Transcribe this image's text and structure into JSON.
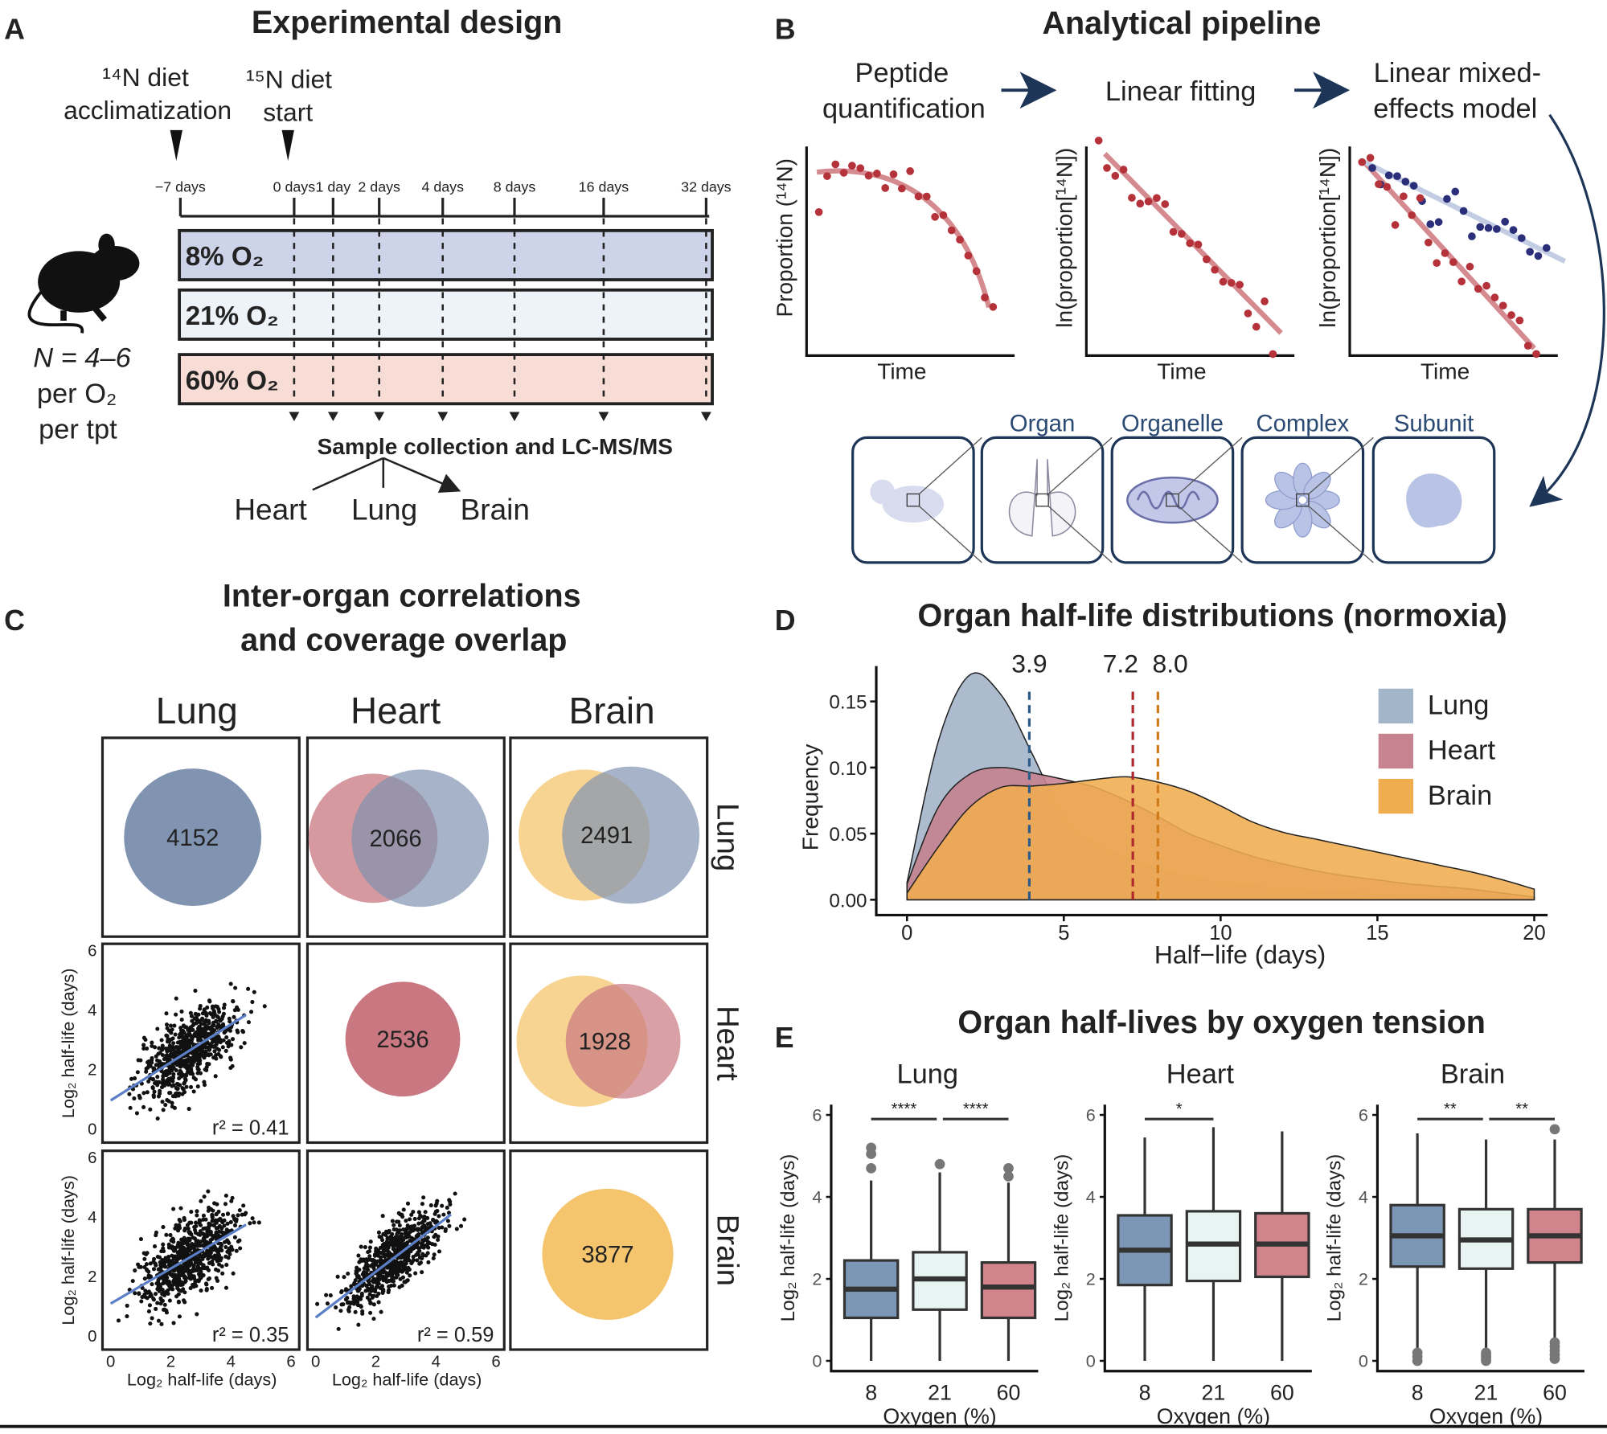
{
  "panel_a": {
    "letter": "A",
    "title": "Experimental design",
    "marker_14n": "¹⁴N diet",
    "marker_14n_sub": "acclimatization",
    "marker_15n": "¹⁵N diet",
    "marker_15n_sub": "start",
    "timepoints": [
      "−7 days",
      "0 days",
      "1 day",
      "2 days",
      "4 days",
      "8 days",
      "16 days",
      "32 days"
    ],
    "conditions": [
      {
        "label": "8% O₂",
        "color": "#cdd3e8"
      },
      {
        "label": "21% O₂",
        "color": "#eef2f9"
      },
      {
        "label": "60% O₂",
        "color": "#f8ddd7"
      }
    ],
    "n_line1": "N = 4–6",
    "n_line2": "per O₂",
    "n_line3": "per tpt",
    "collection": "Sample collection and LC-MS/MS",
    "organs": [
      "Heart",
      "Lung",
      "Brain"
    ],
    "icon": "mouse-silhouette-icon"
  },
  "panel_b": {
    "letter": "B",
    "title": "Analytical pipeline",
    "steps": [
      {
        "title1": "Peptide",
        "title2": "quantification",
        "ylabel": "Proportion (¹⁴N)",
        "xlabel": "Time"
      },
      {
        "title1": "Linear fitting",
        "title2": "",
        "ylabel": "ln(proportion[¹⁴N])",
        "xlabel": "Time"
      },
      {
        "title1": "Linear mixed-",
        "title2": "effects model",
        "ylabel": "ln(proportion[¹⁴N])",
        "xlabel": "Time"
      }
    ],
    "levels": [
      "Organ",
      "Organelle",
      "Complex",
      "Subunit"
    ],
    "colors": {
      "red": "#b5323a",
      "blue": "#2b2f7a",
      "fit_red": "#d48a8e",
      "fit_blue": "#c2cde3",
      "navy": "#1d3557"
    }
  },
  "panel_c": {
    "letter": "C",
    "title1": "Inter-organ correlations",
    "title2": "and coverage overlap",
    "columns": [
      "Lung",
      "Heart",
      "Brain"
    ],
    "rows": [
      "Lung",
      "Heart",
      "Brain"
    ],
    "colors": {
      "Lung": "#8093b0",
      "Heart": "#c97780",
      "Brain": "#f5c56e"
    },
    "venn": {
      "lung": 4152,
      "heart": 2536,
      "brain": 3877,
      "lung_heart": 2066,
      "lung_brain": 2491,
      "heart_brain": 1928
    },
    "scatter": [
      {
        "r2_label": "r² = 0.41",
        "ylabel": "Log₂ half-life (days)",
        "xlabel": ""
      },
      {
        "r2_label": "r² = 0.35",
        "ylabel": "Log₂ half-life (days)",
        "xlabel": "Log₂ half-life (days)"
      },
      {
        "r2_label": "r² = 0.59",
        "ylabel": "",
        "xlabel": "Log₂ half-life (days)"
      }
    ],
    "ticks": [
      "0",
      "2",
      "4",
      "6"
    ]
  },
  "chart_data": [
    {
      "type": "area",
      "panel": "D",
      "title": "Organ half-life distributions (normoxia)",
      "xlabel": "Half−life (days)",
      "ylabel": "Frequency",
      "xlim": [
        0,
        20
      ],
      "ylim": [
        0,
        0.17
      ],
      "xticks": [
        "0",
        "5",
        "10",
        "15",
        "20"
      ],
      "yticks": [
        "0.00",
        "0.05",
        "0.10",
        "0.15"
      ],
      "legend_position": "top-right",
      "x": [
        0,
        1,
        2,
        3,
        4,
        5,
        6,
        7,
        8,
        9,
        10,
        11,
        12,
        13,
        14,
        15,
        16,
        17,
        18,
        19,
        20
      ],
      "series": [
        {
          "name": "Lung",
          "color": "#a3b5c9",
          "median": 3.9,
          "median_color": "#2e5a87",
          "values": [
            0.013,
            0.12,
            0.17,
            0.155,
            0.11,
            0.062,
            0.042,
            0.031,
            0.023,
            0.017,
            0.013,
            0.01,
            0.008,
            0.006,
            0.005,
            0.004,
            0.003,
            0.002,
            0.002,
            0.001,
            0.0
          ]
        },
        {
          "name": "Heart",
          "color": "#c78390",
          "median": 7.2,
          "median_color": "#b0282e",
          "values": [
            0.012,
            0.07,
            0.095,
            0.1,
            0.096,
            0.091,
            0.085,
            0.075,
            0.063,
            0.05,
            0.041,
            0.033,
            0.027,
            0.022,
            0.018,
            0.015,
            0.012,
            0.01,
            0.008,
            0.005,
            0.002
          ]
        },
        {
          "name": "Brain",
          "color": "#f0ad50",
          "median": 8.0,
          "median_color": "#d07a1a",
          "values": [
            0.005,
            0.04,
            0.07,
            0.085,
            0.086,
            0.088,
            0.091,
            0.093,
            0.089,
            0.082,
            0.071,
            0.059,
            0.051,
            0.046,
            0.041,
            0.036,
            0.031,
            0.026,
            0.021,
            0.015,
            0.008
          ]
        }
      ],
      "annotations": [
        "3.9",
        "7.2",
        "8.0"
      ]
    },
    {
      "type": "box",
      "panel": "E",
      "title": "Organ half-lives by oxygen tension",
      "xlabel": "Oxygen (%)",
      "ylabel": "Log₂ half-life (days)",
      "ylim": [
        0,
        6
      ],
      "yticks": [
        "0",
        "2",
        "4",
        "6"
      ],
      "categories": [
        "8",
        "21",
        "60"
      ],
      "colors": [
        "#7b97b5",
        "#e8f4f1",
        "#d1848c"
      ],
      "facets": [
        {
          "name": "Lung",
          "boxes": [
            {
              "min": 0,
              "q1": 1.05,
              "median": 1.75,
              "q3": 2.45,
              "max": 4.4,
              "outliers": [
                4.7,
                5.05,
                5.2
              ]
            },
            {
              "min": 0,
              "q1": 1.25,
              "median": 2.0,
              "q3": 2.65,
              "max": 4.6,
              "outliers": [
                4.8
              ]
            },
            {
              "min": 0,
              "q1": 1.05,
              "median": 1.8,
              "q3": 2.4,
              "max": 4.35,
              "outliers": [
                4.5,
                4.7
              ]
            }
          ],
          "significance": [
            {
              "from": "8",
              "to": "21",
              "label": "****"
            },
            {
              "from": "21",
              "to": "60",
              "label": "****"
            }
          ]
        },
        {
          "name": "Heart",
          "boxes": [
            {
              "min": 0,
              "q1": 1.85,
              "median": 2.7,
              "q3": 3.55,
              "max": 5.45,
              "outliers": []
            },
            {
              "min": 0,
              "q1": 1.95,
              "median": 2.85,
              "q3": 3.65,
              "max": 5.7,
              "outliers": []
            },
            {
              "min": 0,
              "q1": 2.05,
              "median": 2.85,
              "q3": 3.6,
              "max": 5.6,
              "outliers": []
            }
          ],
          "significance": [
            {
              "from": "8",
              "to": "21",
              "label": "*"
            }
          ]
        },
        {
          "name": "Brain",
          "boxes": [
            {
              "min": 0.25,
              "q1": 2.3,
              "median": 3.05,
              "q3": 3.8,
              "max": 5.55,
              "outliers": [
                0.0,
                0.1,
                0.2
              ]
            },
            {
              "min": 0.25,
              "q1": 2.25,
              "median": 2.95,
              "q3": 3.7,
              "max": 5.4,
              "outliers": [
                0.0,
                0.05,
                0.1,
                0.15,
                0.2
              ]
            },
            {
              "min": 0.5,
              "q1": 2.4,
              "median": 3.05,
              "q3": 3.7,
              "max": 5.4,
              "outliers": [
                0.05,
                0.15,
                0.25,
                0.35,
                0.45,
                5.65
              ]
            }
          ],
          "significance": [
            {
              "from": "8",
              "to": "21",
              "label": "**"
            },
            {
              "from": "21",
              "to": "60",
              "label": "**"
            }
          ]
        }
      ]
    }
  ],
  "panel_d": {
    "letter": "D"
  },
  "panel_e": {
    "letter": "E"
  }
}
